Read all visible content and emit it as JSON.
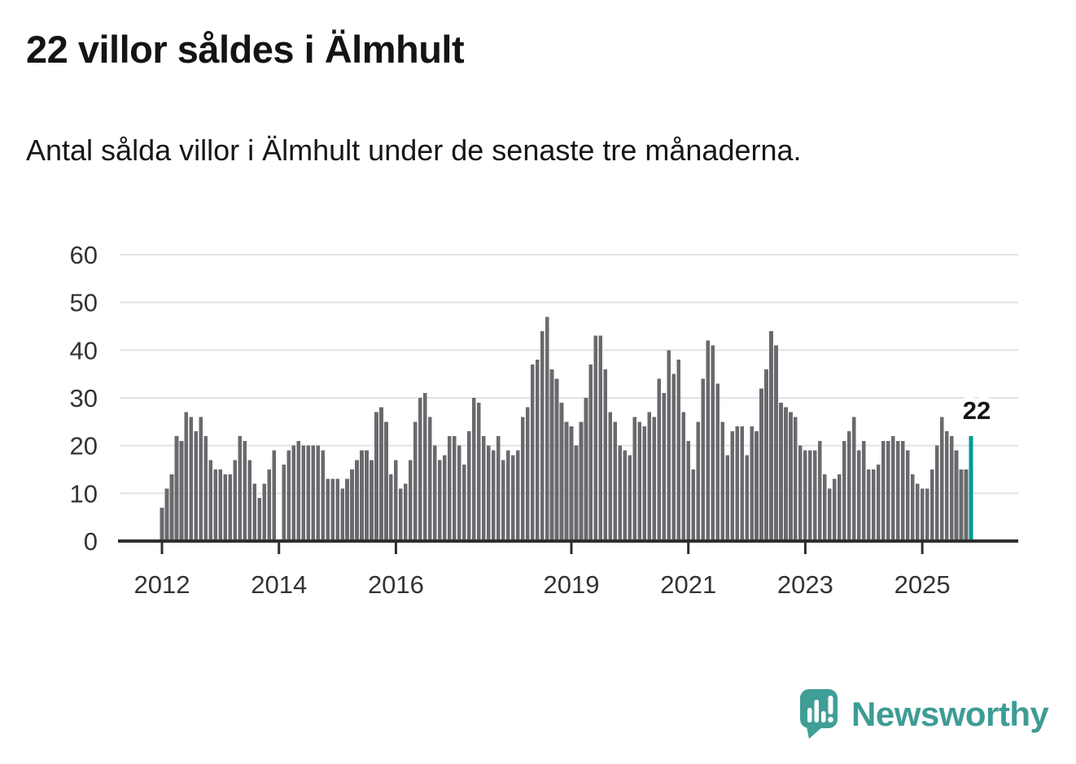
{
  "header": {
    "title": "22 villor såldes i Älmhult",
    "subtitle": "Antal sålda villor i Älmhult under de senaste tre månaderna."
  },
  "chart_data": {
    "type": "bar",
    "title": "22 villor såldes i Älmhult",
    "subtitle": "Antal sålda villor i Älmhult under de senaste tre månaderna.",
    "x_start": "2012-01",
    "frequency": "monthly",
    "ylim": [
      0,
      60
    ],
    "grid": true,
    "y_ticks": [
      0,
      10,
      20,
      30,
      40,
      50,
      60
    ],
    "x_tick_years": [
      2012,
      2014,
      2016,
      2019,
      2021,
      2023,
      2025
    ],
    "values": [
      7,
      11,
      14,
      22,
      21,
      27,
      26,
      23,
      26,
      22,
      17,
      15,
      15,
      14,
      14,
      17,
      22,
      21,
      17,
      12,
      9,
      12,
      15,
      19,
      null,
      16,
      19,
      20,
      21,
      20,
      20,
      20,
      20,
      19,
      13,
      13,
      13,
      11,
      13,
      15,
      17,
      19,
      19,
      17,
      27,
      28,
      25,
      14,
      17,
      11,
      12,
      17,
      25,
      30,
      31,
      26,
      20,
      17,
      18,
      22,
      22,
      20,
      16,
      23,
      30,
      29,
      22,
      20,
      19,
      22,
      17,
      19,
      18,
      19,
      26,
      28,
      37,
      38,
      44,
      47,
      36,
      34,
      29,
      25,
      24,
      20,
      25,
      30,
      37,
      43,
      43,
      36,
      27,
      25,
      20,
      19,
      18,
      26,
      25,
      24,
      27,
      26,
      34,
      31,
      40,
      35,
      38,
      27,
      21,
      15,
      25,
      34,
      42,
      41,
      33,
      25,
      18,
      23,
      24,
      24,
      18,
      24,
      23,
      32,
      36,
      44,
      41,
      29,
      28,
      27,
      26,
      20,
      19,
      19,
      19,
      21,
      14,
      11,
      13,
      14,
      21,
      23,
      26,
      19,
      21,
      15,
      15,
      16,
      21,
      21,
      22,
      21,
      21,
      19,
      14,
      12,
      11,
      11,
      15,
      20,
      26,
      23,
      22,
      19,
      15,
      15,
      22
    ],
    "highlight_last": true,
    "highlight_label": "22",
    "colors": {
      "bar": "#69696e",
      "highlight": "#009a94",
      "grid": "#e2e2e2",
      "axis": "#2e2e2e",
      "tick_text": "#333333",
      "label_text": "#141414"
    }
  },
  "footer": {
    "brand": "Newsworthy",
    "brand_color": "#3d9c95",
    "logo_icon": "speech-bubble-bar-chart-icon"
  }
}
